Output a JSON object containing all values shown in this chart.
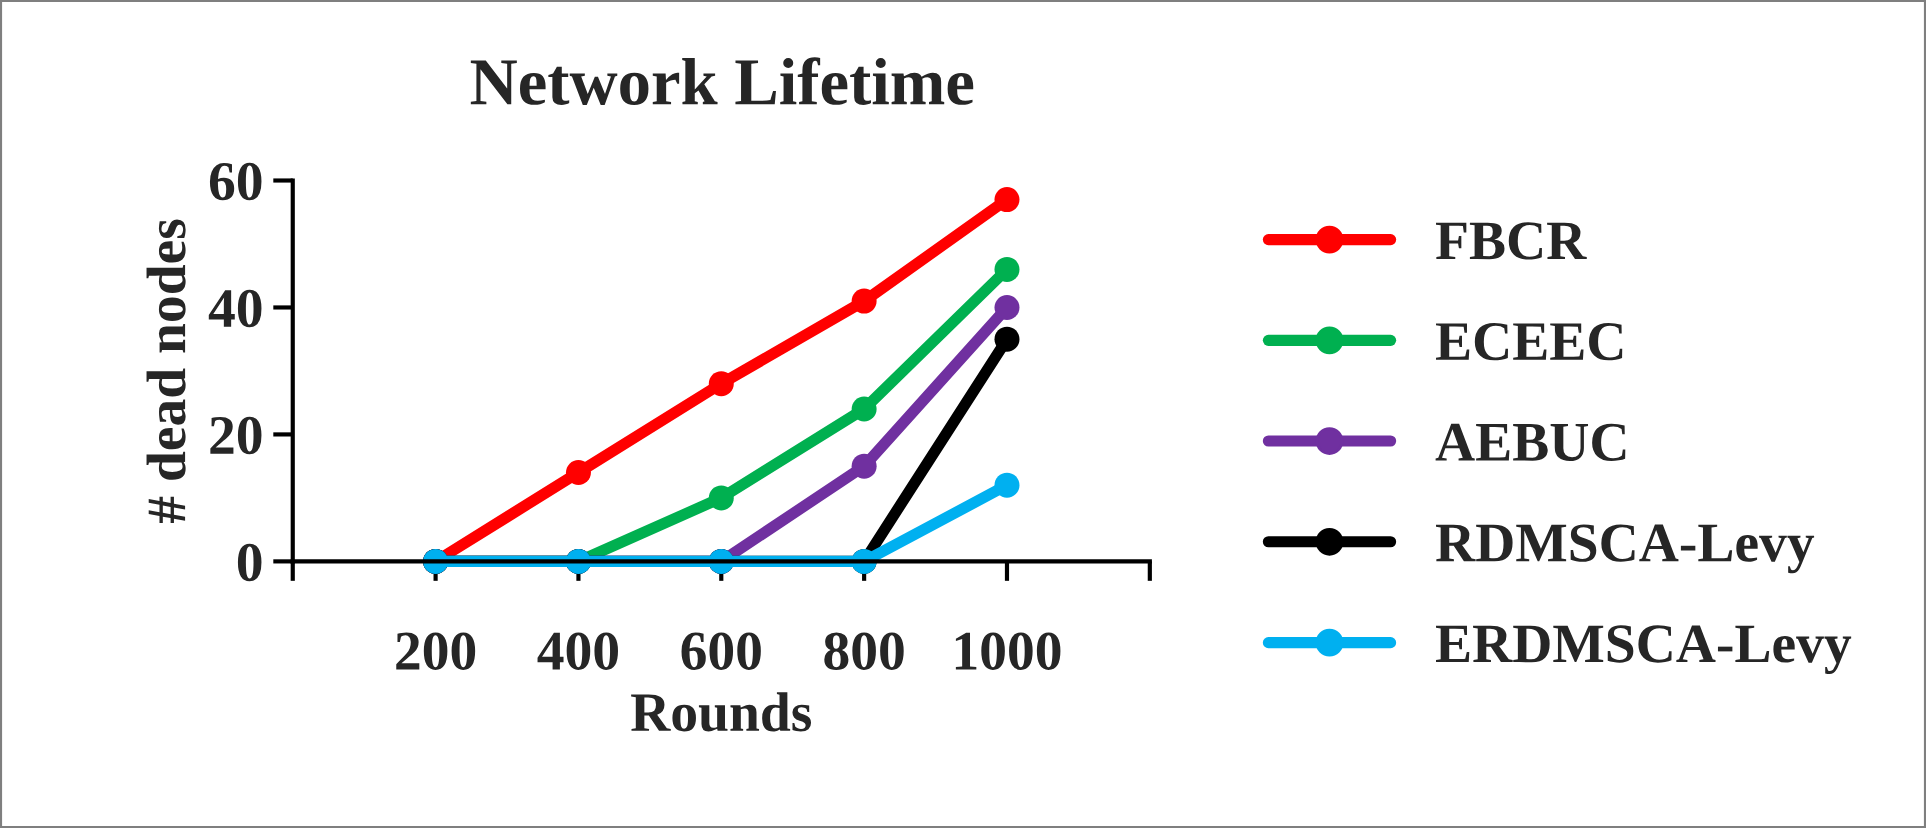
{
  "chart_data": {
    "type": "line",
    "title": "Network Lifetime",
    "xlabel": "Rounds",
    "ylabel": "# dead nodes",
    "x": [
      200,
      400,
      600,
      800,
      1000
    ],
    "series": [
      {
        "name": "FBCR",
        "color": "#ff0000",
        "values": [
          0,
          14,
          28,
          41,
          57
        ]
      },
      {
        "name": "ECEEC",
        "color": "#00b050",
        "values": [
          0,
          0,
          10,
          24,
          46
        ]
      },
      {
        "name": "AEBUC",
        "color": "#7030a0",
        "values": [
          0,
          0,
          0,
          15,
          40
        ]
      },
      {
        "name": "RDMSCA-Levy",
        "color": "#000000",
        "values": [
          0,
          0,
          0,
          0,
          35
        ]
      },
      {
        "name": "ERDMSCA-Levy",
        "color": "#00b0f0",
        "values": [
          0,
          0,
          0,
          0,
          12
        ]
      }
    ],
    "xlim": [
      0,
      1200
    ],
    "xticks": [
      {
        "value": 0,
        "label": null
      },
      200,
      400,
      600,
      800,
      1000,
      {
        "value": 1200,
        "label": null
      }
    ],
    "ylim": [
      0,
      60
    ],
    "yticks": [
      0,
      20,
      40,
      60
    ],
    "marker": "circle",
    "line_style": "solid",
    "grid": false,
    "legend": "right"
  }
}
